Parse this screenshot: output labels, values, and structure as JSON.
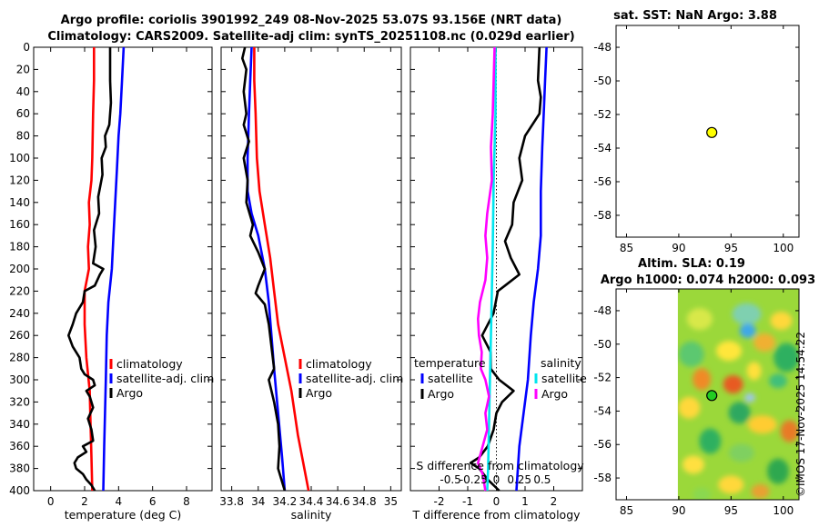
{
  "title_line1": "Argo profile: coriolis 3901992_249 08-Nov-2025 53.07S 93.156E (NRT data)",
  "title_line2": "Climatology: CARS2009. Satellite-adj clim: synTS_20251108.nc (0.029d earlier)",
  "stamp": "©IMOS 17-Nov-2025 14:54:22",
  "colors": {
    "climatology": "#ff0000",
    "satellite": "#0000ff",
    "argo": "#000000",
    "sal_satellite": "#00e5ee",
    "sal_argo": "#ff00ff"
  },
  "chart_data": [
    {
      "type": "line",
      "id": "temperature",
      "xlabel": "temperature (deg C)",
      "xlim": [
        -1,
        9.5
      ],
      "ylim": [
        0,
        400
      ],
      "xticks": [
        0,
        2,
        4,
        6,
        8
      ],
      "xtick_labels": [
        "0",
        "2",
        "4",
        "6",
        "8"
      ],
      "yticks": [
        0,
        20,
        40,
        60,
        80,
        100,
        120,
        140,
        160,
        180,
        200,
        220,
        240,
        260,
        280,
        300,
        320,
        340,
        360,
        380,
        400
      ],
      "y_reversed": true,
      "legend": [
        "climatology",
        "satellite-adj. clim",
        "Argo"
      ],
      "series": [
        {
          "name": "climatology",
          "color": "#ff0000",
          "points": [
            [
              2.55,
              0
            ],
            [
              2.55,
              30
            ],
            [
              2.5,
              60
            ],
            [
              2.45,
              100
            ],
            [
              2.4,
              120
            ],
            [
              2.25,
              140
            ],
            [
              2.3,
              160
            ],
            [
              2.2,
              180
            ],
            [
              2.25,
              200
            ],
            [
              2.0,
              220
            ],
            [
              2.0,
              250
            ],
            [
              2.1,
              280
            ],
            [
              2.3,
              310
            ],
            [
              2.35,
              340
            ],
            [
              2.4,
              370
            ],
            [
              2.45,
              400
            ]
          ]
        },
        {
          "name": "satellite-adj. clim",
          "color": "#0000ff",
          "points": [
            [
              4.3,
              0
            ],
            [
              4.2,
              30
            ],
            [
              4.1,
              60
            ],
            [
              4.0,
              80
            ],
            [
              3.9,
              110
            ],
            [
              3.8,
              140
            ],
            [
              3.7,
              170
            ],
            [
              3.6,
              200
            ],
            [
              3.4,
              230
            ],
            [
              3.3,
              260
            ],
            [
              3.25,
              300
            ],
            [
              3.2,
              330
            ],
            [
              3.15,
              360
            ],
            [
              3.1,
              400
            ]
          ]
        },
        {
          "name": "Argo",
          "color": "#000000",
          "points": [
            [
              3.5,
              0
            ],
            [
              3.5,
              30
            ],
            [
              3.55,
              50
            ],
            [
              3.45,
              70
            ],
            [
              3.2,
              80
            ],
            [
              3.25,
              90
            ],
            [
              3.0,
              100
            ],
            [
              3.05,
              115
            ],
            [
              2.8,
              135
            ],
            [
              2.85,
              150
            ],
            [
              2.55,
              165
            ],
            [
              2.65,
              180
            ],
            [
              2.5,
              195
            ],
            [
              3.1,
              200
            ],
            [
              2.9,
              205
            ],
            [
              2.6,
              215
            ],
            [
              2.0,
              220
            ],
            [
              1.9,
              230
            ],
            [
              1.5,
              240
            ],
            [
              1.3,
              250
            ],
            [
              1.05,
              260
            ],
            [
              1.3,
              270
            ],
            [
              1.7,
              280
            ],
            [
              1.8,
              290
            ],
            [
              2.0,
              295
            ],
            [
              2.5,
              300
            ],
            [
              2.6,
              305
            ],
            [
              2.1,
              310
            ],
            [
              2.3,
              315
            ],
            [
              2.5,
              325
            ],
            [
              2.2,
              335
            ],
            [
              2.4,
              345
            ],
            [
              2.5,
              355
            ],
            [
              1.9,
              360
            ],
            [
              2.1,
              365
            ],
            [
              1.6,
              370
            ],
            [
              1.4,
              375
            ],
            [
              1.5,
              380
            ],
            [
              1.9,
              385
            ],
            [
              2.1,
              390
            ],
            [
              2.4,
              395
            ],
            [
              2.6,
              400
            ]
          ]
        }
      ]
    },
    {
      "type": "line",
      "id": "salinity",
      "xlabel": "salinity",
      "xlim": [
        33.72,
        35.08
      ],
      "ylim": [
        0,
        400
      ],
      "xticks": [
        33.8,
        34,
        34.2,
        34.4,
        34.6,
        34.8,
        35
      ],
      "xtick_labels": [
        "33.8",
        "34",
        "34.2",
        "34.4",
        "34.6",
        "34.8",
        "35"
      ],
      "y_reversed": true,
      "legend": [
        "climatology",
        "satellite-adj. clim",
        "Argo"
      ],
      "series": [
        {
          "name": "climatology",
          "color": "#ff0000",
          "points": [
            [
              33.97,
              0
            ],
            [
              33.97,
              30
            ],
            [
              33.98,
              60
            ],
            [
              33.99,
              100
            ],
            [
              34.01,
              130
            ],
            [
              34.05,
              160
            ],
            [
              34.09,
              190
            ],
            [
              34.12,
              220
            ],
            [
              34.15,
              250
            ],
            [
              34.2,
              280
            ],
            [
              34.25,
              310
            ],
            [
              34.3,
              350
            ],
            [
              34.38,
              400
            ]
          ]
        },
        {
          "name": "satellite-adj. clim",
          "color": "#0000ff",
          "points": [
            [
              33.95,
              0
            ],
            [
              33.94,
              30
            ],
            [
              33.93,
              60
            ],
            [
              33.92,
              100
            ],
            [
              33.92,
              130
            ],
            [
              33.95,
              150
            ],
            [
              34.0,
              170
            ],
            [
              34.05,
              200
            ],
            [
              34.08,
              230
            ],
            [
              34.1,
              260
            ],
            [
              34.12,
              290
            ],
            [
              34.15,
              330
            ],
            [
              34.18,
              370
            ],
            [
              34.2,
              400
            ]
          ]
        },
        {
          "name": "Argo",
          "color": "#000000",
          "points": [
            [
              33.9,
              0
            ],
            [
              33.88,
              10
            ],
            [
              33.91,
              20
            ],
            [
              33.89,
              40
            ],
            [
              33.91,
              60
            ],
            [
              33.89,
              70
            ],
            [
              33.93,
              85
            ],
            [
              33.89,
              100
            ],
            [
              33.92,
              120
            ],
            [
              33.91,
              140
            ],
            [
              33.96,
              160
            ],
            [
              33.94,
              170
            ],
            [
              34.0,
              185
            ],
            [
              34.05,
              200
            ],
            [
              34.0,
              215
            ],
            [
              33.98,
              222
            ],
            [
              34.05,
              232
            ],
            [
              34.08,
              250
            ],
            [
              34.1,
              270
            ],
            [
              34.12,
              290
            ],
            [
              34.08,
              300
            ],
            [
              34.12,
              320
            ],
            [
              34.15,
              340
            ],
            [
              34.16,
              360
            ],
            [
              34.15,
              380
            ],
            [
              34.2,
              400
            ]
          ]
        }
      ]
    },
    {
      "type": "line",
      "id": "difference",
      "xlabel": "T difference from climatology",
      "xlabel_top": "S difference from climatology",
      "xlim": [
        -3.0,
        3.0
      ],
      "ylim": [
        0,
        400
      ],
      "xticks": [
        -2,
        -1,
        0,
        1,
        2
      ],
      "xtick_labels": [
        "-2",
        "-1",
        "0",
        "1",
        "2"
      ],
      "s_xticks": [
        -0.5,
        -0.25,
        0,
        0.25,
        0.5
      ],
      "s_xtick_labels": [
        "-0.5",
        "-0.25",
        "0",
        "0.25",
        "0.5"
      ],
      "s_scale": 3.2,
      "y_reversed": true,
      "legend_temperature": {
        "title": "temperature",
        "items": [
          "satellite",
          "Argo"
        ]
      },
      "legend_salinity": {
        "title": "salinity",
        "items": [
          "satellite",
          "Argo"
        ]
      },
      "series": [
        {
          "name": "T satellite",
          "color": "#0000ff",
          "points": [
            [
              1.75,
              0
            ],
            [
              1.7,
              30
            ],
            [
              1.65,
              60
            ],
            [
              1.6,
              90
            ],
            [
              1.55,
              130
            ],
            [
              1.55,
              170
            ],
            [
              1.45,
              200
            ],
            [
              1.3,
              230
            ],
            [
              1.2,
              260
            ],
            [
              1.1,
              300
            ],
            [
              0.95,
              330
            ],
            [
              0.8,
              360
            ],
            [
              0.7,
              400
            ]
          ]
        },
        {
          "name": "T Argo",
          "color": "#000000",
          "points": [
            [
              1.5,
              0
            ],
            [
              1.45,
              30
            ],
            [
              1.55,
              45
            ],
            [
              1.5,
              60
            ],
            [
              1.0,
              80
            ],
            [
              0.8,
              100
            ],
            [
              0.9,
              120
            ],
            [
              0.6,
              140
            ],
            [
              0.55,
              160
            ],
            [
              0.3,
              175
            ],
            [
              0.5,
              190
            ],
            [
              0.8,
              205
            ],
            [
              0.3,
              215
            ],
            [
              0.05,
              220
            ],
            [
              -0.1,
              240
            ],
            [
              -0.5,
              260
            ],
            [
              -0.2,
              275
            ],
            [
              -0.2,
              290
            ],
            [
              0.1,
              300
            ],
            [
              0.6,
              310
            ],
            [
              0.2,
              320
            ],
            [
              0.0,
              330
            ],
            [
              -0.1,
              345
            ],
            [
              -0.3,
              360
            ],
            [
              -0.6,
              370
            ],
            [
              -0.9,
              375
            ],
            [
              -0.6,
              380
            ],
            [
              -0.3,
              390
            ],
            [
              0.1,
              400
            ]
          ]
        },
        {
          "name": "S satellite",
          "color": "#00e5ee",
          "points": [
            [
              -0.01,
              0
            ],
            [
              -0.01,
              60
            ],
            [
              -0.03,
              120
            ],
            [
              -0.04,
              180
            ],
            [
              -0.05,
              220
            ],
            [
              -0.06,
              260
            ],
            [
              -0.07,
              300
            ],
            [
              -0.08,
              340
            ],
            [
              -0.09,
              380
            ],
            [
              -0.1,
              400
            ]
          ]
        },
        {
          "name": "S Argo",
          "color": "#ff00ff",
          "points": [
            [
              -0.02,
              0
            ],
            [
              -0.03,
              30
            ],
            [
              -0.04,
              60
            ],
            [
              -0.06,
              90
            ],
            [
              -0.05,
              120
            ],
            [
              -0.1,
              150
            ],
            [
              -0.12,
              170
            ],
            [
              -0.1,
              190
            ],
            [
              -0.12,
              210
            ],
            [
              -0.18,
              230
            ],
            [
              -0.2,
              245
            ],
            [
              -0.19,
              260
            ],
            [
              -0.16,
              275
            ],
            [
              -0.17,
              290
            ],
            [
              -0.12,
              300
            ],
            [
              -0.08,
              315
            ],
            [
              -0.12,
              330
            ],
            [
              -0.1,
              345
            ],
            [
              -0.15,
              360
            ],
            [
              -0.2,
              375
            ],
            [
              -0.15,
              385
            ],
            [
              -0.12,
              400
            ]
          ]
        }
      ]
    },
    {
      "type": "scatter",
      "id": "sst",
      "title": "sat. SST: NaN Argo: 3.88",
      "xlim": [
        84,
        101.5
      ],
      "ylim": [
        -59.3,
        -46.7
      ],
      "xticks": [
        85,
        90,
        95,
        100
      ],
      "xtick_labels": [
        "85",
        "90",
        "95",
        "100"
      ],
      "yticks": [
        -48,
        -50,
        -52,
        -54,
        -56,
        -58
      ],
      "ytick_labels": [
        "-48",
        "-50",
        "-52",
        "-54",
        "-56",
        "-58"
      ],
      "point": {
        "x": 93.16,
        "y": -53.07,
        "color": "#ffff00"
      }
    },
    {
      "type": "heatmap",
      "id": "sla",
      "title_line1": "Altim. SLA: 0.19",
      "title_line2": "Argo h1000: 0.074 h2000: 0.093",
      "xlim": [
        84,
        101.5
      ],
      "ylim": [
        -59.3,
        -46.7
      ],
      "xticks": [
        85,
        90,
        95,
        100
      ],
      "xtick_labels": [
        "85",
        "90",
        "95",
        "100"
      ],
      "yticks": [
        -48,
        -50,
        -52,
        -54,
        -56,
        -58
      ],
      "ytick_labels": [
        "-48",
        "-50",
        "-52",
        "-54",
        "-56",
        "-58"
      ],
      "field_xlim": [
        89.9,
        101.5
      ],
      "point": {
        "x": 93.16,
        "y": -53.07,
        "color": "#22cc22"
      }
    }
  ]
}
